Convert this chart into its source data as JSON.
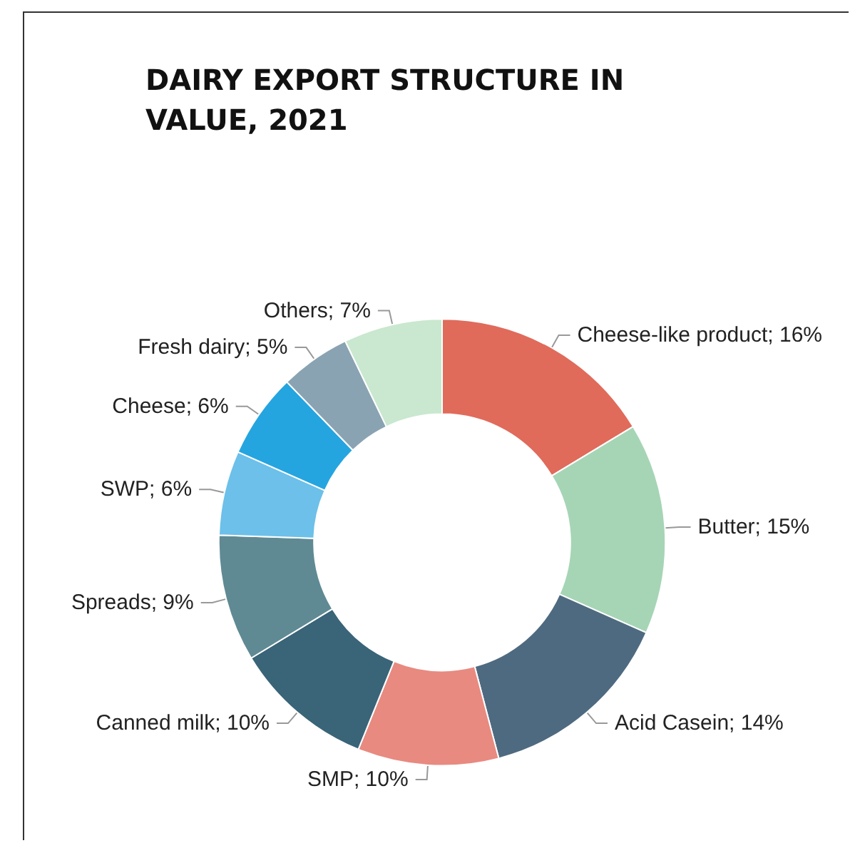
{
  "chart_data": {
    "type": "donut",
    "title": "DAIRY EXPORT STRUCTURE IN VALUE, 2021",
    "categories": [
      "Cheese-like product",
      "Butter",
      "Acid Casein",
      "SMP",
      "Canned milk",
      "Spreads",
      "SWP",
      "Cheese",
      "Fresh dairy",
      "Others"
    ],
    "values": [
      16,
      15,
      14,
      10,
      10,
      9,
      6,
      6,
      5,
      7
    ],
    "colors": [
      "#e06b5b",
      "#a6d5b5",
      "#4e6a80",
      "#e88a80",
      "#3a6478",
      "#5f8a94",
      "#6cc0ea",
      "#25a5e0",
      "#8aa3b3",
      "#c9e8cf"
    ],
    "value_labels": [
      "16%",
      "15%",
      "14%",
      "10%",
      "10%",
      "9%",
      "6%",
      "6%",
      "5%",
      "7%"
    ]
  }
}
